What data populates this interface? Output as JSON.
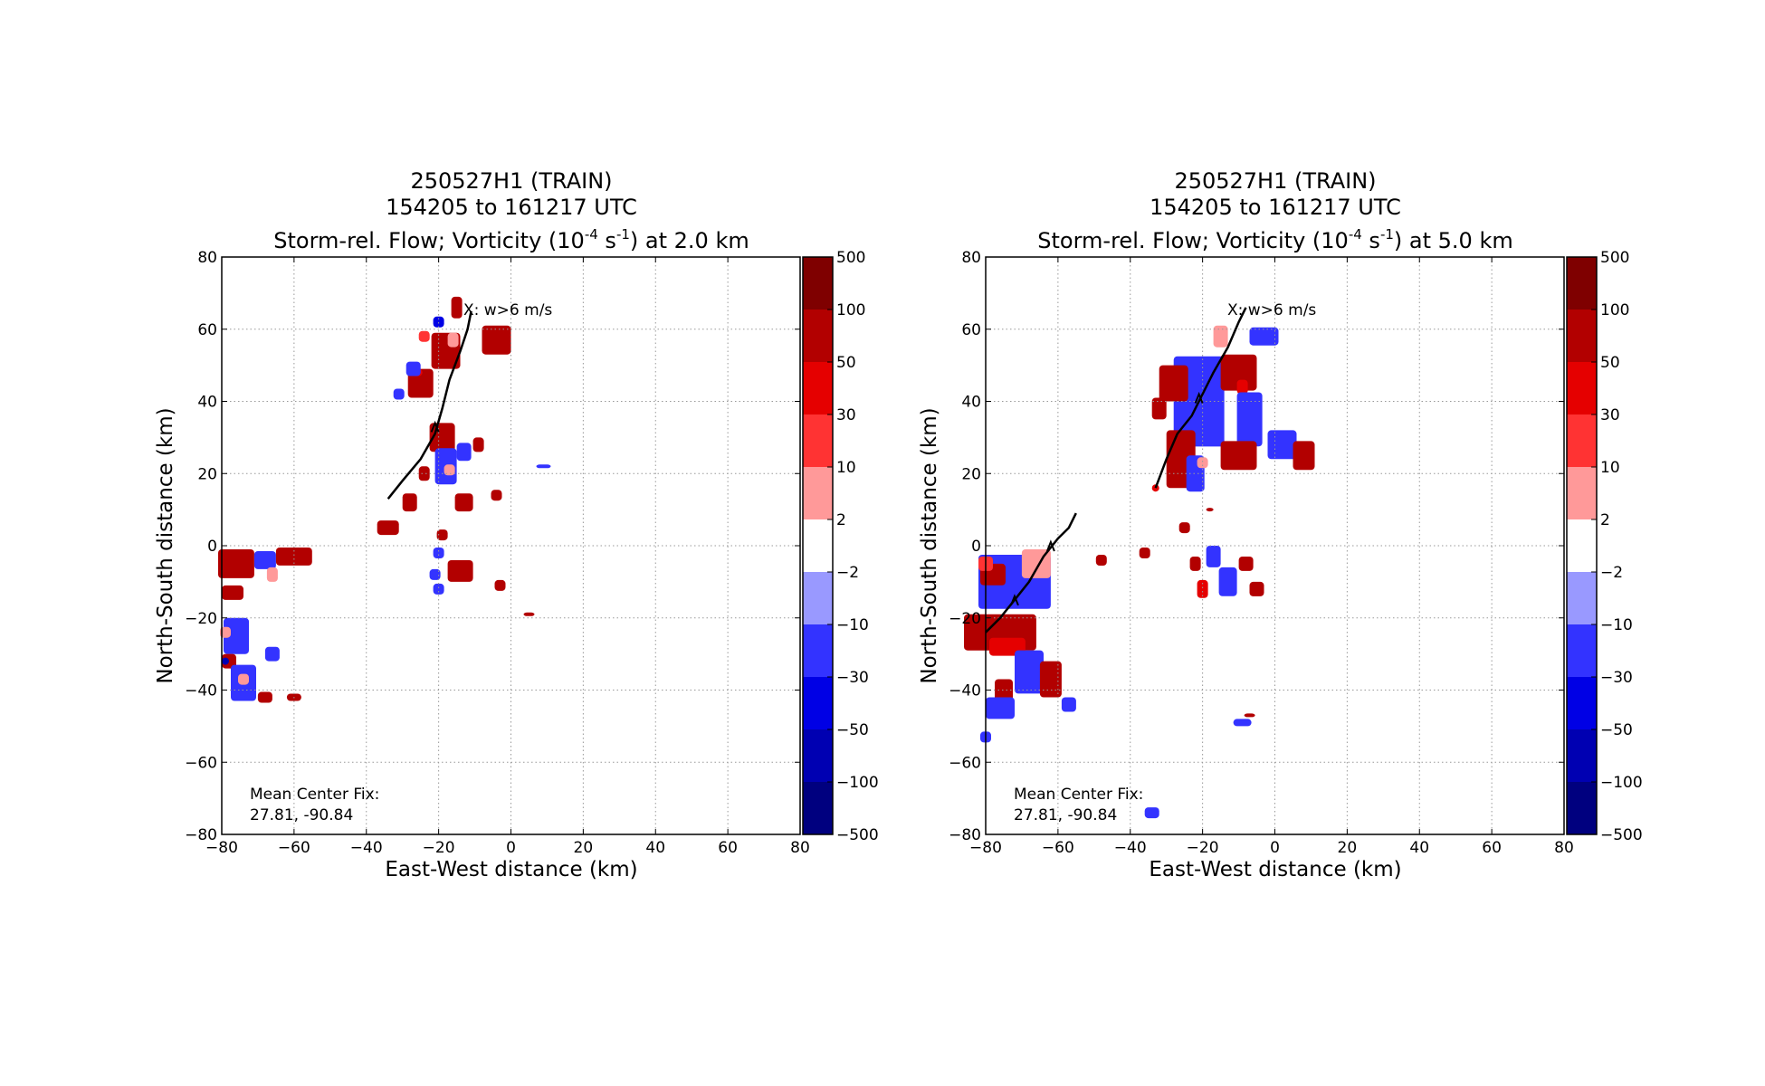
{
  "chart_data": [
    {
      "type": "heatmap",
      "title_lines": [
        "250527H1 (TRAIN)",
        "154205 to 161217 UTC"
      ],
      "title_prefix": "Storm-rel. Flow; Vorticity (10",
      "title_exp1": "-4",
      "title_mid": " s",
      "title_exp2": "-1",
      "title_suffix": ") at 2.0 km",
      "xlabel": "East-West distance (km)",
      "ylabel": "North-South distance (km)",
      "xlim": [
        -80,
        80
      ],
      "ylim": [
        -80,
        80
      ],
      "xticks": [
        "−80",
        "−60",
        "−40",
        "−20",
        "0",
        "20",
        "40",
        "60",
        "80"
      ],
      "yticks": [
        "80",
        "60",
        "40",
        "20",
        "0",
        "−20",
        "−40",
        "−60",
        "−80"
      ],
      "grid": true,
      "annotation": "X: w>6 m/s",
      "center_fix_label": "Mean Center Fix:",
      "center_fix_value": "27.81, -90.84",
      "colorbar_ticks": [
        "500",
        "100",
        "50",
        "30",
        "10",
        "2",
        "−2",
        "−10",
        "−30",
        "−50",
        "−100",
        "−500"
      ],
      "track_lines": [
        [
          [
            -34,
            13
          ],
          [
            -30,
            18
          ],
          [
            -25,
            24
          ],
          [
            -21,
            31
          ],
          [
            -19,
            38
          ],
          [
            -17,
            46
          ],
          [
            -14,
            54
          ],
          [
            -12,
            60
          ],
          [
            -11,
            65
          ]
        ]
      ],
      "track_arrows": [
        [
          -21,
          33
        ]
      ],
      "patches": [
        {
          "x": -15,
          "y": 66,
          "w": 3,
          "h": 6,
          "c": 1
        },
        {
          "x": -18,
          "y": 54,
          "w": 8,
          "h": 10,
          "c": 1
        },
        {
          "x": -16,
          "y": 57,
          "w": 3,
          "h": 4,
          "c": 4
        },
        {
          "x": -25,
          "y": 45,
          "w": 7,
          "h": 8,
          "c": 1
        },
        {
          "x": -26,
          "y": 48,
          "w": 3,
          "h": 2,
          "c": 2
        },
        {
          "x": -24,
          "y": 58,
          "w": 3,
          "h": 3,
          "c": 3
        },
        {
          "x": -27,
          "y": 49,
          "w": 4,
          "h": 4,
          "c": 7
        },
        {
          "x": -20,
          "y": 62,
          "w": 3,
          "h": 3,
          "c": 8
        },
        {
          "x": -4,
          "y": 57,
          "w": 8,
          "h": 8,
          "c": 1
        },
        {
          "x": -31,
          "y": 42,
          "w": 3,
          "h": 3,
          "c": 7
        },
        {
          "x": -19,
          "y": 30,
          "w": 7,
          "h": 8,
          "c": 1
        },
        {
          "x": -18,
          "y": 22,
          "w": 6,
          "h": 10,
          "c": 7
        },
        {
          "x": -17,
          "y": 21,
          "w": 3,
          "h": 3,
          "c": 4
        },
        {
          "x": -13,
          "y": 26,
          "w": 4,
          "h": 5,
          "c": 7
        },
        {
          "x": -9,
          "y": 28,
          "w": 3,
          "h": 4,
          "c": 1
        },
        {
          "x": -24,
          "y": 20,
          "w": 3,
          "h": 4,
          "c": 1
        },
        {
          "x": -13,
          "y": 12,
          "w": 5,
          "h": 5,
          "c": 1
        },
        {
          "x": -28,
          "y": 12,
          "w": 4,
          "h": 5,
          "c": 1
        },
        {
          "x": -4,
          "y": 14,
          "w": 3,
          "h": 3,
          "c": 1
        },
        {
          "x": 9,
          "y": 22,
          "w": 4,
          "h": 1,
          "c": 7
        },
        {
          "x": -34,
          "y": 5,
          "w": 6,
          "h": 4,
          "c": 1
        },
        {
          "x": -19,
          "y": 3,
          "w": 3,
          "h": 3,
          "c": 1
        },
        {
          "x": -20,
          "y": -2,
          "w": 3,
          "h": 3,
          "c": 7
        },
        {
          "x": -21,
          "y": -8,
          "w": 3,
          "h": 3,
          "c": 7
        },
        {
          "x": -14,
          "y": -7,
          "w": 7,
          "h": 6,
          "c": 1
        },
        {
          "x": -3,
          "y": -11,
          "w": 3,
          "h": 3,
          "c": 1
        },
        {
          "x": -20,
          "y": -12,
          "w": 3,
          "h": 3,
          "c": 7
        },
        {
          "x": -76,
          "y": -5,
          "w": 10,
          "h": 8,
          "c": 1
        },
        {
          "x": -68,
          "y": -4,
          "w": 6,
          "h": 5,
          "c": 7
        },
        {
          "x": -66,
          "y": -8,
          "w": 3,
          "h": 4,
          "c": 4
        },
        {
          "x": -60,
          "y": -3,
          "w": 10,
          "h": 5,
          "c": 1
        },
        {
          "x": -77,
          "y": -13,
          "w": 6,
          "h": 4,
          "c": 1
        },
        {
          "x": -76,
          "y": -25,
          "w": 7,
          "h": 10,
          "c": 7
        },
        {
          "x": -79,
          "y": -24,
          "w": 3,
          "h": 3,
          "c": 4
        },
        {
          "x": -78,
          "y": -32,
          "w": 4,
          "h": 4,
          "c": 1
        },
        {
          "x": -79,
          "y": -32,
          "w": 2,
          "h": 2,
          "c": 9
        },
        {
          "x": -74,
          "y": -38,
          "w": 7,
          "h": 10,
          "c": 7
        },
        {
          "x": -74,
          "y": -37,
          "w": 3,
          "h": 3,
          "c": 4
        },
        {
          "x": -66,
          "y": -30,
          "w": 4,
          "h": 4,
          "c": 7
        },
        {
          "x": -68,
          "y": -42,
          "w": 4,
          "h": 3,
          "c": 1
        },
        {
          "x": -60,
          "y": -42,
          "w": 4,
          "h": 2,
          "c": 1
        },
        {
          "x": 5,
          "y": -19,
          "w": 3,
          "h": 1,
          "c": 1
        }
      ]
    },
    {
      "type": "heatmap",
      "title_lines": [
        "250527H1 (TRAIN)",
        "154205 to 161217 UTC"
      ],
      "title_prefix": "Storm-rel. Flow; Vorticity (10",
      "title_exp1": "-4",
      "title_mid": " s",
      "title_exp2": "-1",
      "title_suffix": ") at 5.0 km",
      "xlabel": "East-West distance (km)",
      "ylabel": "North-South distance (km)",
      "xlim": [
        -80,
        80
      ],
      "ylim": [
        -80,
        80
      ],
      "xticks": [
        "−80",
        "−60",
        "−40",
        "−20",
        "0",
        "20",
        "40",
        "60",
        "80"
      ],
      "yticks": [
        "80",
        "60",
        "40",
        "20",
        "0",
        "−20",
        "−40",
        "−60",
        "−80"
      ],
      "grid": true,
      "annotation": "X: w>6 m/s",
      "center_fix_label": "Mean Center Fix:",
      "center_fix_value": "27.81, -90.84",
      "colorbar_ticks": [
        "500",
        "100",
        "50",
        "30",
        "10",
        "2",
        "−2",
        "−10",
        "−30",
        "−50",
        "−100",
        "−500"
      ],
      "track_lines": [
        [
          [
            -33,
            16
          ],
          [
            -30,
            24
          ],
          [
            -27,
            31
          ],
          [
            -23,
            36
          ],
          [
            -20,
            42
          ],
          [
            -17,
            48
          ],
          [
            -13,
            55
          ],
          [
            -10,
            62
          ],
          [
            -8,
            66
          ]
        ],
        [
          [
            -80,
            -24
          ],
          [
            -76,
            -20
          ],
          [
            -72,
            -15
          ],
          [
            -68,
            -10
          ],
          [
            -64,
            -3
          ],
          [
            -60,
            2
          ],
          [
            -57,
            5
          ],
          [
            -55,
            9
          ]
        ]
      ],
      "track_arrows": [
        [
          -21,
          41
        ],
        [
          -72,
          -15
        ],
        [
          -62,
          0
        ]
      ],
      "patches": [
        {
          "x": -21,
          "y": 40,
          "w": 14,
          "h": 25,
          "c": 7
        },
        {
          "x": -15,
          "y": 58,
          "w": 4,
          "h": 6,
          "c": 4
        },
        {
          "x": -20,
          "y": 55,
          "w": 4,
          "h": 4,
          "c": 5
        },
        {
          "x": -28,
          "y": 45,
          "w": 8,
          "h": 10,
          "c": 1
        },
        {
          "x": -32,
          "y": 38,
          "w": 4,
          "h": 6,
          "c": 1
        },
        {
          "x": -10,
          "y": 48,
          "w": 10,
          "h": 10,
          "c": 1
        },
        {
          "x": -9,
          "y": 44,
          "w": 3,
          "h": 4,
          "c": 2
        },
        {
          "x": -3,
          "y": 58,
          "w": 8,
          "h": 5,
          "c": 7
        },
        {
          "x": -7,
          "y": 35,
          "w": 7,
          "h": 15,
          "c": 7
        },
        {
          "x": -26,
          "y": 24,
          "w": 8,
          "h": 16,
          "c": 1
        },
        {
          "x": -22,
          "y": 20,
          "w": 5,
          "h": 10,
          "c": 7
        },
        {
          "x": -20,
          "y": 23,
          "w": 3,
          "h": 3,
          "c": 4
        },
        {
          "x": -10,
          "y": 25,
          "w": 10,
          "h": 8,
          "c": 1
        },
        {
          "x": 2,
          "y": 28,
          "w": 8,
          "h": 8,
          "c": 7
        },
        {
          "x": 8,
          "y": 25,
          "w": 6,
          "h": 8,
          "c": 1
        },
        {
          "x": -18,
          "y": 10,
          "w": 2,
          "h": 1,
          "c": 1
        },
        {
          "x": -33,
          "y": 16,
          "w": 2,
          "h": 2,
          "c": 2
        },
        {
          "x": -25,
          "y": 5,
          "w": 3,
          "h": 3,
          "c": 1
        },
        {
          "x": -17,
          "y": -3,
          "w": 4,
          "h": 6,
          "c": 7
        },
        {
          "x": -22,
          "y": -5,
          "w": 3,
          "h": 4,
          "c": 1
        },
        {
          "x": -13,
          "y": -10,
          "w": 5,
          "h": 8,
          "c": 7
        },
        {
          "x": -20,
          "y": -12,
          "w": 3,
          "h": 5,
          "c": 2
        },
        {
          "x": -8,
          "y": -5,
          "w": 4,
          "h": 4,
          "c": 1
        },
        {
          "x": -5,
          "y": -12,
          "w": 4,
          "h": 4,
          "c": 1
        },
        {
          "x": -72,
          "y": -10,
          "w": 20,
          "h": 15,
          "c": 7
        },
        {
          "x": -66,
          "y": -5,
          "w": 8,
          "h": 8,
          "c": 4
        },
        {
          "x": -78,
          "y": -8,
          "w": 7,
          "h": 6,
          "c": 1
        },
        {
          "x": -80,
          "y": -5,
          "w": 4,
          "h": 4,
          "c": 3
        },
        {
          "x": -76,
          "y": -24,
          "w": 20,
          "h": 10,
          "c": 1
        },
        {
          "x": -74,
          "y": -28,
          "w": 10,
          "h": 5,
          "c": 2
        },
        {
          "x": -68,
          "y": -35,
          "w": 8,
          "h": 12,
          "c": 7
        },
        {
          "x": -75,
          "y": -40,
          "w": 5,
          "h": 6,
          "c": 1
        },
        {
          "x": -62,
          "y": -37,
          "w": 6,
          "h": 10,
          "c": 1
        },
        {
          "x": -76,
          "y": -45,
          "w": 8,
          "h": 6,
          "c": 7
        },
        {
          "x": -57,
          "y": -44,
          "w": 4,
          "h": 4,
          "c": 7
        },
        {
          "x": -80,
          "y": -53,
          "w": 3,
          "h": 3,
          "c": 7
        },
        {
          "x": -48,
          "y": -4,
          "w": 3,
          "h": 3,
          "c": 1
        },
        {
          "x": -36,
          "y": -2,
          "w": 3,
          "h": 3,
          "c": 1
        },
        {
          "x": -34,
          "y": -74,
          "w": 4,
          "h": 3,
          "c": 7
        },
        {
          "x": -9,
          "y": -49,
          "w": 5,
          "h": 2,
          "c": 7
        },
        {
          "x": -7,
          "y": -47,
          "w": 3,
          "h": 1,
          "c": 1
        }
      ]
    }
  ],
  "colormap": [
    "#7f0000",
    "#b20000",
    "#e50000",
    "#ff3333",
    "#ff9999",
    "#ffffff",
    "#9999ff",
    "#3333ff",
    "#0000e5",
    "#0000b2",
    "#00007f"
  ],
  "track_color": "#000000",
  "grid_color": "#999999"
}
